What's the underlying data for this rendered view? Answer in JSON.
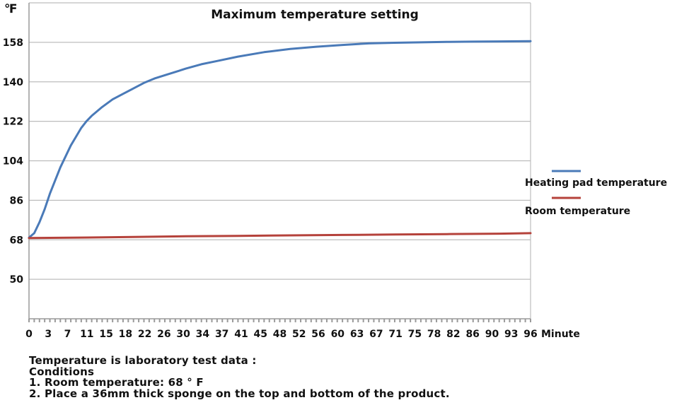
{
  "chart_data": {
    "type": "line",
    "title": "Maximum temperature setting",
    "ylabel": "℉",
    "xlabel": "Minute",
    "ylim": [
      32,
      176
    ],
    "xlim": [
      0,
      96
    ],
    "yticks": [
      50,
      68,
      86,
      104,
      122,
      140,
      158
    ],
    "xtick_labels": [
      "0",
      "3",
      "7",
      "11",
      "15",
      "18",
      "22",
      "26",
      "30",
      "34",
      "37",
      "41",
      "45",
      "48",
      "52",
      "56",
      "60",
      "63",
      "67",
      "71",
      "75",
      "78",
      "82",
      "86",
      "90",
      "93",
      "96"
    ],
    "grid": true,
    "legend_position": "right",
    "series": [
      {
        "name": "Heating pad temperature",
        "color": "#4a7ab8",
        "x": [
          0,
          1,
          2,
          3,
          4,
          5,
          6,
          7,
          8,
          9,
          10,
          11,
          12,
          14,
          16,
          18,
          20,
          22,
          24,
          26,
          28,
          30,
          33,
          36,
          40,
          45,
          50,
          55,
          60,
          65,
          70,
          75,
          80,
          85,
          90,
          96
        ],
        "y": [
          69,
          71,
          76,
          82,
          89,
          95,
          101,
          106,
          111,
          115,
          119,
          122,
          124.5,
          128.5,
          132,
          134.5,
          137,
          139.5,
          141.5,
          143,
          144.5,
          146,
          148,
          149.5,
          151.5,
          153.5,
          155,
          156,
          156.8,
          157.5,
          157.8,
          158,
          158.2,
          158.3,
          158.4,
          158.5
        ]
      },
      {
        "name": "Room temperature",
        "color": "#b5423b",
        "x": [
          0,
          10,
          20,
          30,
          40,
          50,
          60,
          70,
          80,
          90,
          96
        ],
        "y": [
          68.8,
          69,
          69.3,
          69.6,
          69.8,
          70,
          70.2,
          70.4,
          70.6,
          70.8,
          71
        ]
      }
    ]
  },
  "notes": {
    "line1": "Temperature is laboratory test data :",
    "line2": "Conditions",
    "line3": "1. Room temperature: 68 ° F",
    "line4": "2. Place a 36mm thick sponge on the top and bottom of the product."
  }
}
